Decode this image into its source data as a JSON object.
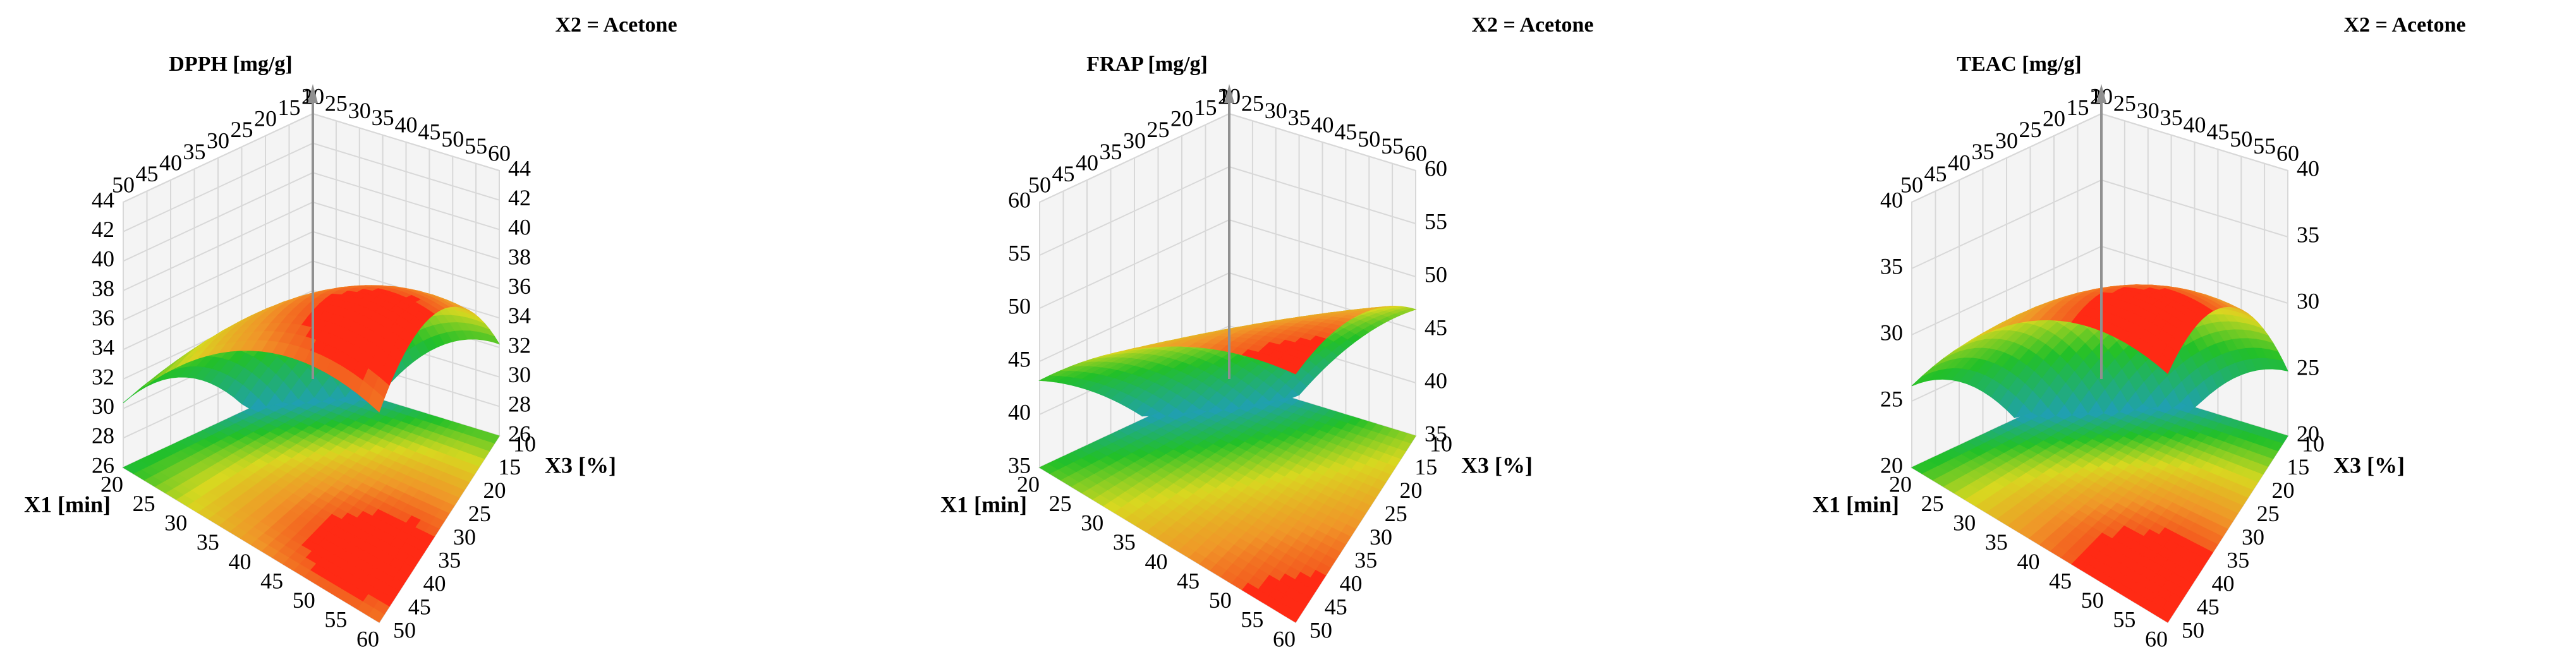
{
  "chart_data": [
    {
      "type": "surface",
      "title": "DPPH [mg/g]",
      "subtitle": "X2 = Acetone",
      "x_label": "X1 [min]",
      "y_label": "X3 [%]",
      "xlim": [
        20,
        60
      ],
      "xticks": [
        20,
        25,
        30,
        35,
        40,
        45,
        50,
        55,
        60
      ],
      "ylim": [
        10,
        50
      ],
      "yticks": [
        10,
        15,
        20,
        25,
        30,
        35,
        40,
        45,
        50
      ],
      "zlim": [
        26,
        44
      ],
      "zticks": [
        26,
        28,
        30,
        32,
        34,
        36,
        38,
        40,
        42,
        44
      ]
    },
    {
      "type": "surface",
      "title": "FRAP [mg/g]",
      "subtitle": "X2 = Acetone",
      "x_label": "X1 [min]",
      "y_label": "X3 [%]",
      "xlim": [
        20,
        60
      ],
      "xticks": [
        20,
        25,
        30,
        35,
        40,
        45,
        50,
        55,
        60
      ],
      "ylim": [
        10,
        50
      ],
      "yticks": [
        10,
        15,
        20,
        25,
        30,
        35,
        40,
        45,
        50
      ],
      "zlim": [
        35,
        60
      ],
      "zticks": [
        35,
        40,
        45,
        50,
        55,
        60
      ]
    },
    {
      "type": "surface",
      "title": "TEAC [mg/g]",
      "subtitle": "X2 = Acetone",
      "x_label": "X1 [min]",
      "y_label": "X3 [%]",
      "xlim": [
        20,
        60
      ],
      "xticks": [
        20,
        25,
        30,
        35,
        40,
        45,
        50,
        55,
        60
      ],
      "ylim": [
        10,
        50
      ],
      "yticks": [
        10,
        15,
        20,
        25,
        30,
        35,
        40,
        45,
        50
      ],
      "zlim": [
        20,
        40
      ],
      "zticks": [
        20,
        25,
        30,
        35,
        40
      ]
    }
  ]
}
